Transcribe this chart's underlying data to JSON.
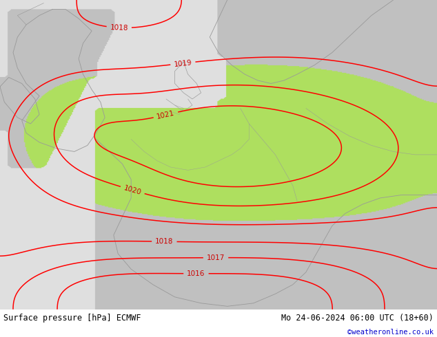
{
  "title_left": "Surface pressure [hPa] ECMWF",
  "title_right": "Mo 24-06-2024 06:00 UTC (18+60)",
  "credit": "©weatheronline.co.uk",
  "sea_color": [
    0.878,
    0.878,
    0.878
  ],
  "land_green_color": [
    0.686,
    0.878,
    0.373
  ],
  "land_gray_color": [
    0.753,
    0.753,
    0.753
  ],
  "contour_color": "#ff0000",
  "border_color": "#999999",
  "label_color": "#cc0000",
  "footer_text_color": "#000000",
  "credit_color": "#0000cc",
  "contour_levels": [
    1016,
    1017,
    1018,
    1019,
    1020,
    1021
  ],
  "label_fontsize": 7.5,
  "footer_fontsize": 8.5,
  "figsize": [
    6.34,
    4.9
  ],
  "dpi": 100
}
